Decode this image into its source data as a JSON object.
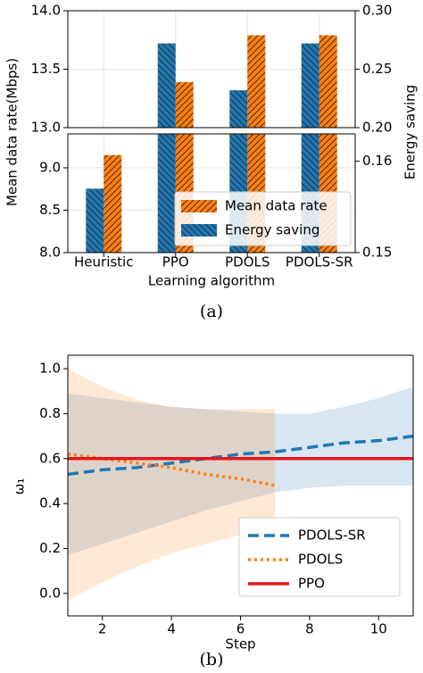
{
  "chart_data": [
    {
      "type": "bar",
      "caption": "(a)",
      "categories": [
        "Heuristic",
        "PPO",
        "PDOLS",
        "PDOLS-SR"
      ],
      "xlabel": "Learning algorithm",
      "ylabel": "Mean data rate(Mbps)",
      "y2label": "Energy saving",
      "series": [
        {
          "name": "Mean data rate",
          "color": "#ff7f0e",
          "hatch": "/",
          "values": [
            9.15,
            13.39,
            13.79,
            13.79
          ]
        },
        {
          "name": "Energy saving",
          "color": "#1f77b4",
          "hatch": "\\",
          "axis": "y2",
          "values": [
            0.157,
            0.272,
            0.232,
            0.272
          ]
        }
      ],
      "segments": [
        {
          "ylim": [
            13.0,
            14.0
          ],
          "yticks": [
            {
              "value": 13.0,
              "label": "13.0"
            },
            13.5,
            {
              "value": 14.0,
              "label": "14.0"
            }
          ],
          "y2lim": [
            0.2,
            0.3
          ],
          "y2ticks": [
            {
              "value": 0.2,
              "label": "0.20"
            },
            0.25,
            {
              "value": 0.3,
              "label": "0.30"
            }
          ]
        },
        {
          "ylim": [
            8.0,
            9.4
          ],
          "yticks": [
            {
              "value": 8.0,
              "label": "8.0"
            },
            8.5,
            {
              "value": 9.0,
              "label": "9.0"
            }
          ],
          "y2lim": [
            0.15,
            0.163
          ],
          "y2ticks": [
            0.15,
            0.16
          ]
        }
      ],
      "grid": true,
      "legend": "lower right"
    },
    {
      "type": "line",
      "caption": "(b)",
      "xlabel": "Step",
      "ylabel": "ω₁",
      "xlim": [
        1,
        11
      ],
      "xticks": [
        2,
        4,
        6,
        8,
        10
      ],
      "ylim": [
        -0.1,
        1.06
      ],
      "yticks": [
        {
          "value": 0.0,
          "label": "0.0"
        },
        0.2,
        0.4,
        0.6,
        0.8,
        {
          "value": 1.0,
          "label": "1.0"
        }
      ],
      "series": [
        {
          "name": "PDOLS-SR",
          "color": "#1f77b4",
          "style": "dashed",
          "x": [
            1,
            2,
            3,
            4,
            5,
            6,
            7,
            8,
            9,
            10,
            11
          ],
          "values": [
            0.53,
            0.55,
            0.56,
            0.58,
            0.6,
            0.62,
            0.63,
            0.65,
            0.67,
            0.68,
            0.7
          ],
          "upper": [
            0.89,
            0.87,
            0.85,
            0.83,
            0.82,
            0.81,
            0.8,
            0.8,
            0.83,
            0.87,
            0.92
          ],
          "lower": [
            0.17,
            0.22,
            0.27,
            0.32,
            0.37,
            0.41,
            0.45,
            0.47,
            0.48,
            0.48,
            0.48
          ]
        },
        {
          "name": "PDOLS",
          "color": "#ff7f0e",
          "style": "dotted",
          "x": [
            1,
            2,
            3,
            4,
            5,
            6,
            7
          ],
          "values": [
            0.62,
            0.6,
            0.58,
            0.56,
            0.53,
            0.51,
            0.48
          ],
          "upper": [
            1.0,
            0.92,
            0.86,
            0.83,
            0.82,
            0.82,
            0.82
          ],
          "lower": [
            -0.03,
            0.05,
            0.12,
            0.18,
            0.22,
            0.26,
            0.3
          ]
        },
        {
          "name": "PPO",
          "color": "#e8141c",
          "style": "solid",
          "x": [
            1,
            11
          ],
          "values": [
            0.6,
            0.6
          ]
        }
      ],
      "legend": "lower right"
    }
  ]
}
